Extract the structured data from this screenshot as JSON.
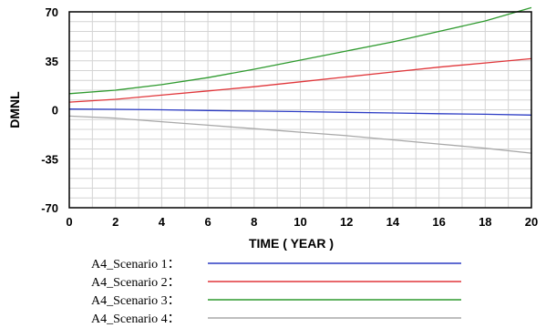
{
  "chart_data": {
    "type": "line",
    "xlabel": "TIME ( YEAR )",
    "ylabel": "DMNL",
    "xlim": [
      0,
      20
    ],
    "ylim": [
      -70,
      70
    ],
    "x_ticks": [
      "0",
      "2",
      "4",
      "6",
      "8",
      "10",
      "12",
      "14",
      "16",
      "18",
      "20"
    ],
    "y_ticks": [
      "70",
      "35",
      "0",
      "-35",
      "-70"
    ],
    "grid": true,
    "legend_position": "bottom",
    "x": [
      0,
      2,
      4,
      6,
      8,
      10,
      12,
      14,
      16,
      18,
      20
    ],
    "series": [
      {
        "name": "A4_Scenario 1：",
        "color": "#2b3bc4",
        "values": [
          0.5,
          0.3,
          0.0,
          -0.5,
          -0.9,
          -1.3,
          -1.8,
          -2.3,
          -2.8,
          -3.2,
          -3.8
        ]
      },
      {
        "name": "A4_Scenario 2：",
        "color": "#e0363a",
        "values": [
          5.5,
          7.5,
          10.5,
          13.5,
          16.5,
          20.0,
          23.5,
          27.0,
          30.5,
          33.5,
          36.5
        ]
      },
      {
        "name": "A4_Scenario 3：",
        "color": "#2e9a2e",
        "values": [
          11.5,
          14.0,
          18.0,
          23.0,
          29.0,
          35.5,
          42.0,
          48.5,
          56.0,
          63.5,
          73.0
        ]
      },
      {
        "name": "A4_Scenario 4：",
        "color": "#a8a8a8",
        "values": [
          -4.5,
          -6.0,
          -8.5,
          -11.0,
          -13.5,
          -16.0,
          -18.5,
          -21.5,
          -24.5,
          -27.5,
          -31.0
        ]
      }
    ]
  }
}
